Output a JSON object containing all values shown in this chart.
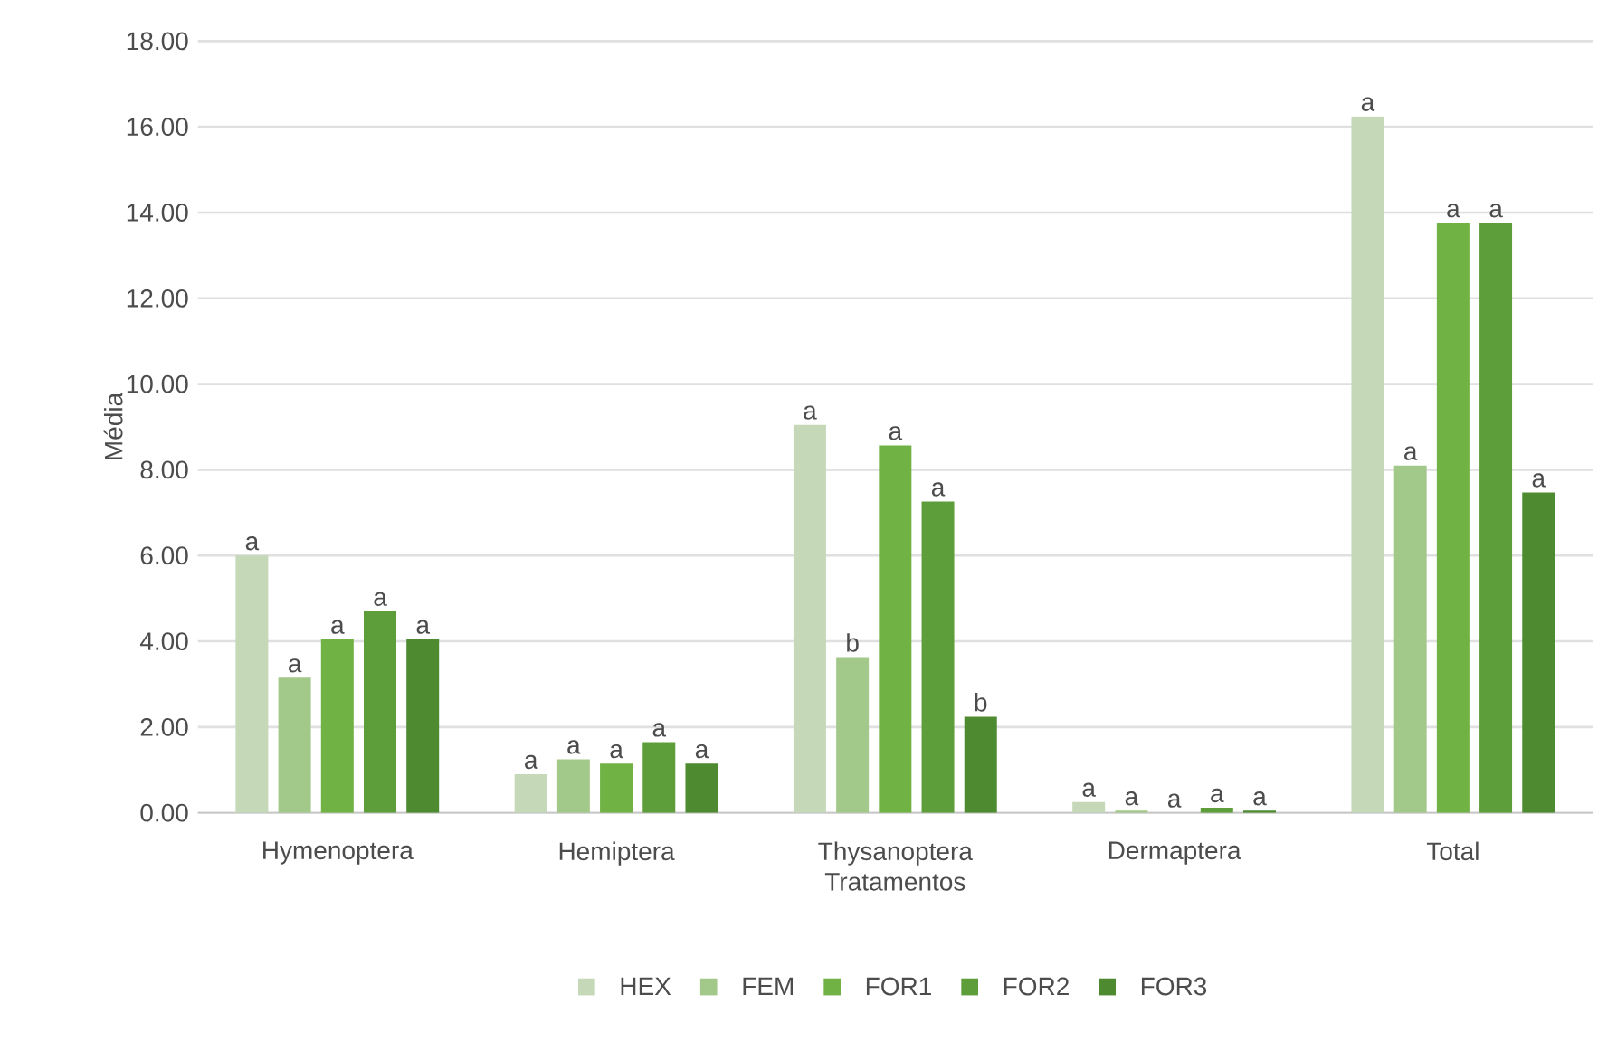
{
  "chart_data": {
    "type": "bar",
    "xlabel": "Tratamentos",
    "ylabel": "Média",
    "categories": [
      "Hymenoptera",
      "Hemiptera",
      "Thysanoptera",
      "Dermaptera",
      "Total"
    ],
    "series": [
      {
        "name": "HEX",
        "color": "#c5d9b8",
        "values": [
          6.0,
          0.9,
          9.05,
          0.25,
          16.24
        ],
        "value_labels": [
          "a",
          "a",
          "a",
          "a",
          "a"
        ]
      },
      {
        "name": "FEM",
        "color": "#a3c98a",
        "values": [
          3.15,
          1.25,
          3.63,
          0.05,
          8.1
        ],
        "value_labels": [
          "a",
          "a",
          "b",
          "a",
          "a"
        ]
      },
      {
        "name": "FOR1",
        "color": "#70b244",
        "values": [
          4.05,
          1.15,
          8.57,
          0.0,
          13.76
        ],
        "value_labels": [
          "a",
          "a",
          "a",
          "a",
          "a"
        ]
      },
      {
        "name": "FOR2",
        "color": "#5e9e3a",
        "values": [
          4.7,
          1.65,
          7.26,
          0.12,
          13.76
        ],
        "value_labels": [
          "a",
          "a",
          "a",
          "a",
          "a"
        ]
      },
      {
        "name": "FOR3",
        "color": "#4e8a2f",
        "values": [
          4.05,
          1.15,
          2.24,
          0.05,
          7.47
        ],
        "value_labels": [
          "a",
          "a",
          "b",
          "a",
          "a"
        ]
      }
    ],
    "ylim": [
      0,
      18
    ],
    "yticks": [
      {
        "value": 0,
        "label": "0.00"
      },
      {
        "value": 2,
        "label": "2.00"
      },
      {
        "value": 4,
        "label": "4.00"
      },
      {
        "value": 6,
        "label": "6.00"
      },
      {
        "value": 8,
        "label": "8.00"
      },
      {
        "value": 10,
        "label": "10.00"
      },
      {
        "value": 12,
        "label": "12.00"
      },
      {
        "value": 14,
        "label": "14.00"
      },
      {
        "value": 16,
        "label": "16.00"
      },
      {
        "value": 18,
        "label": "18.00"
      }
    ],
    "grid": "y",
    "legend": "bottom"
  }
}
